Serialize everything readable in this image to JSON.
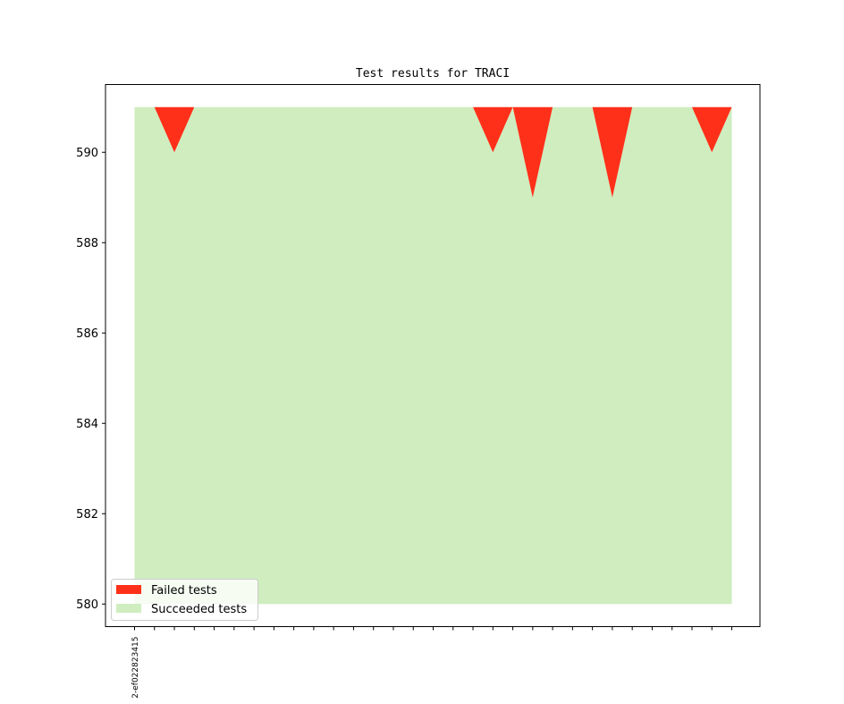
{
  "chart_data": {
    "type": "area",
    "title": "Test results for TRACI",
    "xlabel": "",
    "ylabel": "",
    "ylim": [
      579.5,
      591.5
    ],
    "yticks": [
      580,
      582,
      584,
      586,
      588,
      590
    ],
    "x": [
      0,
      1,
      2,
      3,
      4,
      5,
      6,
      7,
      8,
      9,
      10,
      11,
      12,
      13,
      14,
      15,
      16,
      17,
      18,
      19,
      20,
      21,
      22,
      23,
      24,
      25,
      26,
      27,
      28,
      29,
      30
    ],
    "xtick_labels": [
      "2-ef022823415"
    ],
    "series": [
      {
        "name": "Failed tests",
        "color": "#ff3019",
        "bottom": [
          591,
          591,
          590,
          591,
          591,
          591,
          591,
          591,
          591,
          591,
          591,
          591,
          591,
          591,
          591,
          591,
          591,
          591,
          590,
          591,
          589,
          591,
          591,
          591,
          589,
          591,
          591,
          591,
          591,
          590,
          591
        ],
        "top": [
          591,
          591,
          591,
          591,
          591,
          591,
          591,
          591,
          591,
          591,
          591,
          591,
          591,
          591,
          591,
          591,
          591,
          591,
          591,
          591,
          591,
          591,
          591,
          591,
          591,
          591,
          591,
          591,
          591,
          591,
          591
        ]
      },
      {
        "name": "Succeeded tests",
        "color": "#cfedbf",
        "bottom": [
          580,
          580,
          580,
          580,
          580,
          580,
          580,
          580,
          580,
          580,
          580,
          580,
          580,
          580,
          580,
          580,
          580,
          580,
          580,
          580,
          580,
          580,
          580,
          580,
          580,
          580,
          580,
          580,
          580,
          580,
          580
        ],
        "top": [
          591,
          591,
          590,
          591,
          591,
          591,
          591,
          591,
          591,
          591,
          591,
          591,
          591,
          591,
          591,
          591,
          591,
          591,
          590,
          591,
          589,
          591,
          591,
          591,
          589,
          591,
          591,
          591,
          591,
          590,
          591
        ]
      }
    ],
    "legend_position": "lower-left",
    "grid": false
  }
}
